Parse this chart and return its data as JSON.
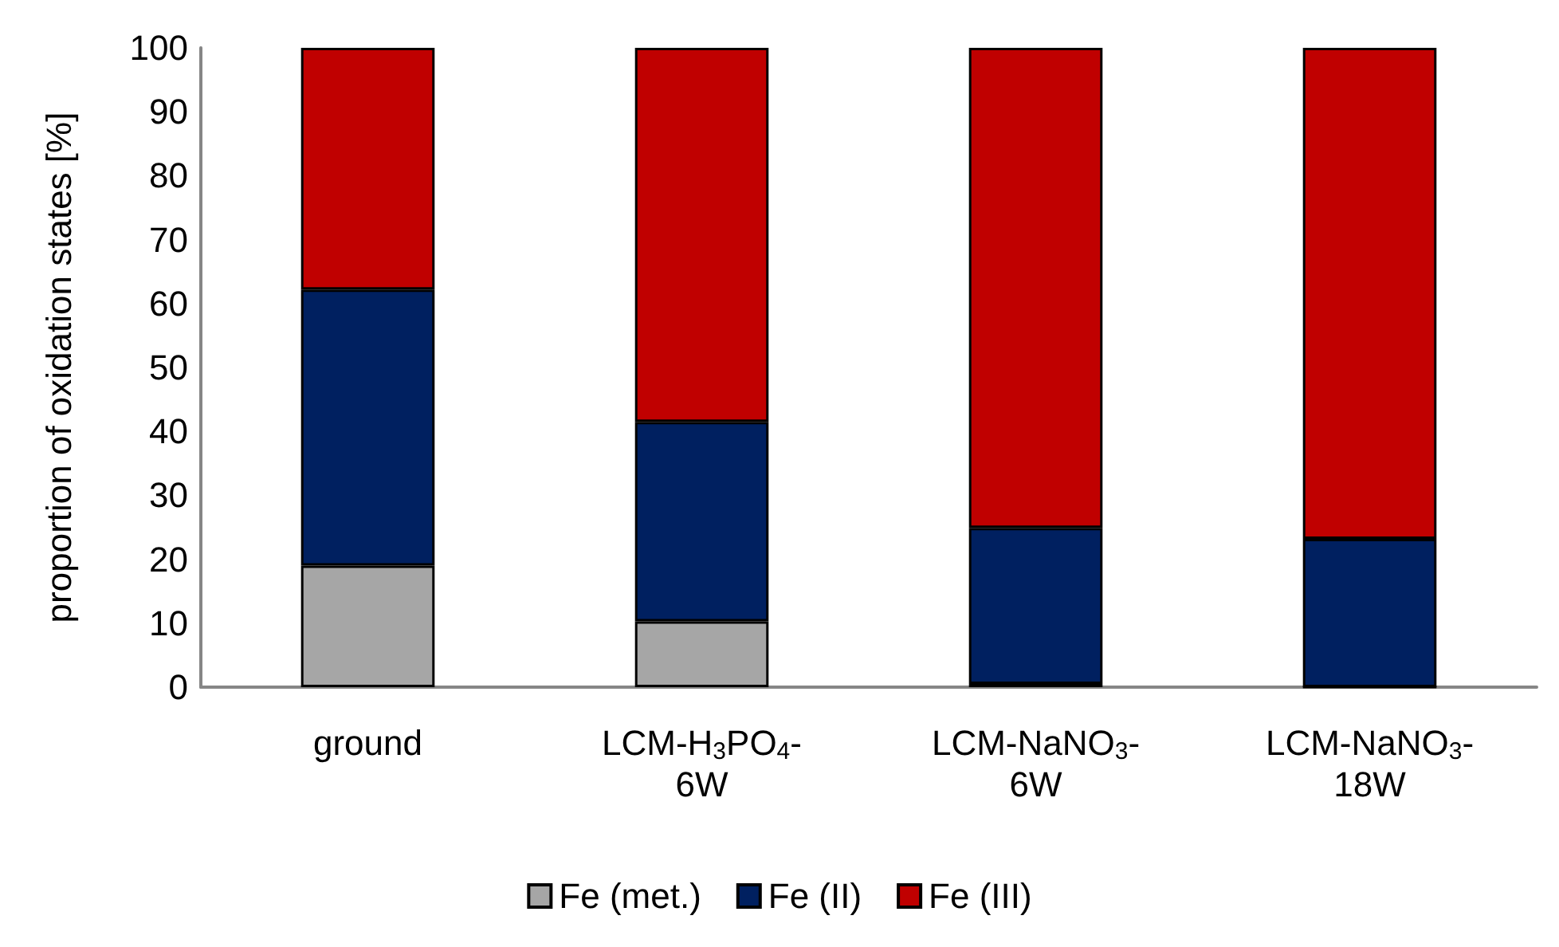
{
  "chart_data": {
    "type": "bar",
    "stacked": true,
    "ylabel": "proportion of oxidation states [%]",
    "categories": [
      "ground",
      "LCM-H$_{3}$PO$_{4}$-6W",
      "LCM-NaNO$_{3}$-6W",
      "LCM-NaNO$_{3}$-18W"
    ],
    "series": [
      {
        "name": "Fe (met.)",
        "color": "#a6a6a6",
        "values": [
          19,
          10.3,
          0.5,
          0
        ]
      },
      {
        "name": "Fe (II)",
        "color": "#002060",
        "values": [
          43.2,
          31.2,
          24.4,
          23.2
        ]
      },
      {
        "name": "Fe (III)",
        "color": "#c00000",
        "values": [
          37.8,
          58.5,
          75.1,
          76.8
        ]
      }
    ],
    "ylim": [
      0,
      100
    ],
    "yticks": [
      0,
      10,
      20,
      30,
      40,
      50,
      60,
      70,
      80,
      90,
      100
    ],
    "grid": false,
    "legend": "bottom"
  }
}
